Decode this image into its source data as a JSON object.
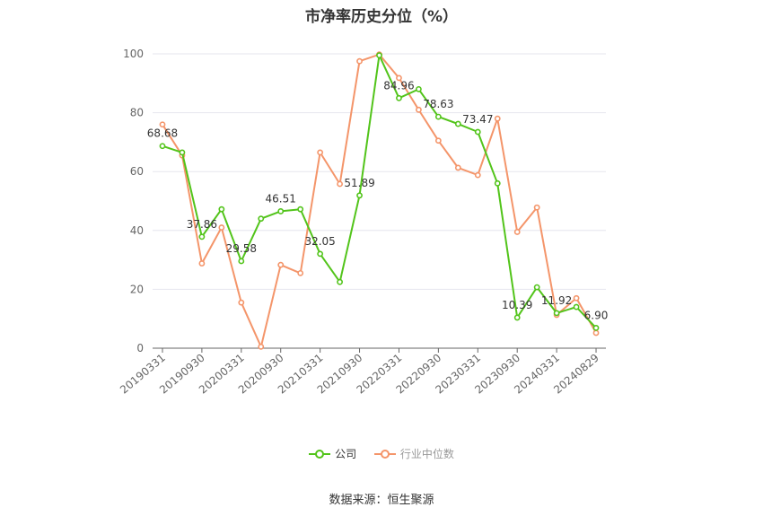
{
  "chart_data": {
    "type": "line",
    "title": "市净率历史分位（%）",
    "source": "数据来源：恒生聚源",
    "ylim": [
      0,
      100
    ],
    "y_ticks": [
      "0",
      "20",
      "40",
      "60",
      "80",
      "100"
    ],
    "x_tick_labels": [
      "20190331",
      "20190930",
      "20200331",
      "20200930",
      "20210331",
      "20210930",
      "20220331",
      "20220930",
      "20230331",
      "20230930",
      "20240331",
      "20240829"
    ],
    "x_tick_positions": [
      0,
      2,
      4,
      6,
      8,
      10,
      12,
      14,
      16,
      18,
      20,
      22
    ],
    "grid": "horizontal",
    "legend_position": "bottom-center",
    "n_points": 23,
    "series": [
      {
        "name": "公司",
        "color": "#52c41a",
        "values": [
          68.68,
          66.5,
          37.86,
          47.2,
          29.58,
          44.0,
          46.51,
          47.2,
          32.05,
          22.5,
          51.89,
          99.5,
          84.96,
          88.0,
          78.63,
          76.2,
          73.47,
          56.0,
          10.39,
          20.7,
          11.92,
          14.0,
          6.9
        ],
        "labels": {
          "0": "68.68",
          "2": "37.86",
          "4": "29.58",
          "6": "46.51",
          "8": "32.05",
          "10": "51.89",
          "12": "84.96",
          "14": "78.63",
          "16": "73.47",
          "18": "10.39",
          "20": "11.92",
          "22": "6.90"
        }
      },
      {
        "name": "行业中位数",
        "color": "#f4956a",
        "values": [
          76.0,
          65.5,
          28.8,
          41.0,
          15.5,
          0.5,
          28.3,
          25.5,
          66.5,
          55.8,
          97.5,
          99.8,
          91.8,
          81.0,
          70.5,
          61.3,
          58.8,
          78.0,
          39.5,
          47.8,
          11.3,
          17.0,
          5.2
        ]
      }
    ]
  }
}
